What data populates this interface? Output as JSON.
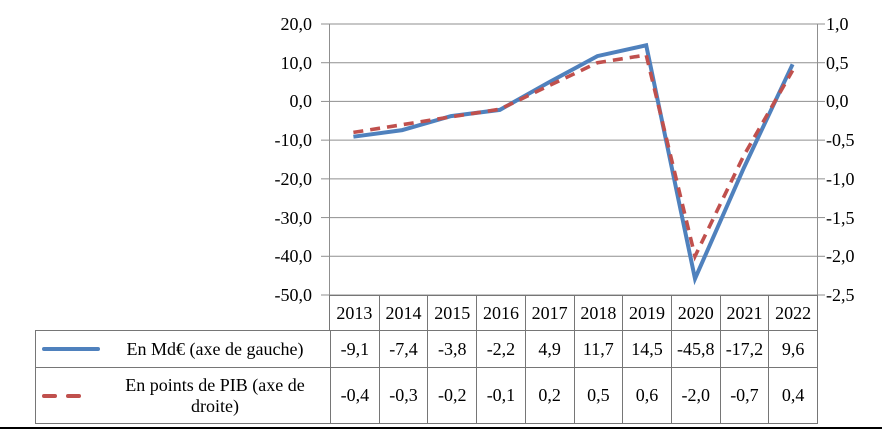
{
  "page": {
    "background": "#ffffff",
    "bottom_rule_color": "#000000"
  },
  "chart_data": {
    "type": "line",
    "title": "",
    "categories": [
      "2013",
      "2014",
      "2015",
      "2016",
      "2017",
      "2018",
      "2019",
      "2020",
      "2021",
      "2022"
    ],
    "series": [
      {
        "name": "En Md€ (axe de gauche)",
        "axis": "left",
        "color": "#4f81bd",
        "line_style": "solid",
        "values": [
          -9.1,
          -7.4,
          -3.8,
          -2.2,
          4.9,
          11.7,
          14.5,
          -45.8,
          -17.2,
          9.6
        ]
      },
      {
        "name": "En points de PIB (axe de droite)",
        "axis": "right",
        "color": "#c0504d",
        "line_style": "dashed",
        "values": [
          -0.4,
          -0.3,
          -0.2,
          -0.1,
          0.2,
          0.5,
          0.6,
          -2.0,
          -0.7,
          0.4
        ]
      }
    ],
    "left_axis": {
      "min": -50,
      "max": 20,
      "tick_step": 10,
      "tick_labels": [
        "20,0",
        "10,0",
        "0,0",
        "-10,0",
        "-20,0",
        "-30,0",
        "-40,0",
        "-50,0"
      ]
    },
    "right_axis": {
      "min": -2.5,
      "max": 1.0,
      "tick_step": 0.5,
      "tick_labels": [
        "1,0",
        "0,5",
        "0,0",
        "-0,5",
        "-1,0",
        "-1,5",
        "-2,0",
        "-2,5"
      ]
    },
    "grid": true,
    "gridline_color": "#8f8f8f",
    "axis_line_color": "#8f8f8f",
    "legend_position": "data-table-left"
  },
  "data_table": {
    "border_color": "#767676",
    "year_header": [
      "2013",
      "2014",
      "2015",
      "2016",
      "2017",
      "2018",
      "2019",
      "2020",
      "2021",
      "2022"
    ],
    "rows": [
      {
        "label": "En Md€ (axe de gauche)",
        "swatch": "blue-solid-line",
        "values": [
          "-9,1",
          "-7,4",
          "-3,8",
          "-2,2",
          "4,9",
          "11,7",
          "14,5",
          "-45,8",
          "-17,2",
          "9,6"
        ]
      },
      {
        "label": "En points de PIB (axe de droite)",
        "swatch": "red-dashed-line",
        "values": [
          "-0,4",
          "-0,3",
          "-0,2",
          "-0,1",
          "0,2",
          "0,5",
          "0,6",
          "-2,0",
          "-0,7",
          "0,4"
        ]
      }
    ]
  }
}
